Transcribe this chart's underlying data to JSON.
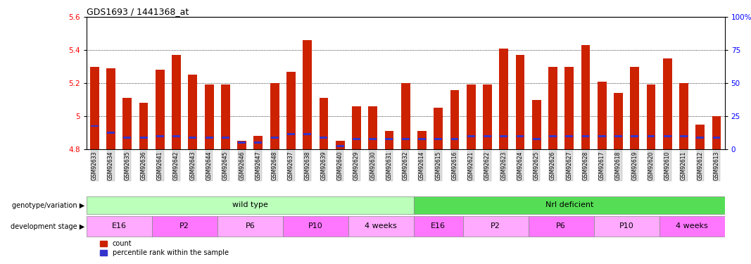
{
  "title": "GDS1693 / 1441368_at",
  "samples": [
    "GSM92633",
    "GSM92634",
    "GSM92635",
    "GSM92636",
    "GSM92641",
    "GSM92642",
    "GSM92643",
    "GSM92644",
    "GSM92645",
    "GSM92646",
    "GSM92647",
    "GSM92648",
    "GSM92637",
    "GSM92638",
    "GSM92639",
    "GSM92640",
    "GSM92629",
    "GSM92630",
    "GSM92631",
    "GSM92632",
    "GSM92614",
    "GSM92615",
    "GSM92616",
    "GSM92621",
    "GSM92622",
    "GSM92623",
    "GSM92624",
    "GSM92625",
    "GSM92626",
    "GSM92627",
    "GSM92628",
    "GSM92617",
    "GSM92618",
    "GSM92619",
    "GSM92620",
    "GSM92610",
    "GSM92611",
    "GSM92612",
    "GSM92613"
  ],
  "count_values": [
    5.3,
    5.29,
    5.11,
    5.08,
    5.28,
    5.37,
    5.25,
    5.19,
    5.19,
    4.85,
    4.88,
    5.2,
    5.27,
    5.46,
    5.11,
    4.85,
    5.06,
    5.06,
    4.91,
    5.2,
    4.91,
    5.05,
    5.16,
    5.19,
    5.19,
    5.41,
    5.37,
    5.1,
    5.3,
    5.3,
    5.43,
    5.21,
    5.14,
    5.3,
    5.19,
    5.35,
    5.2,
    4.95,
    5.0
  ],
  "percentile_values": [
    4.94,
    4.9,
    4.87,
    4.87,
    4.88,
    4.88,
    4.87,
    4.87,
    4.87,
    4.84,
    4.84,
    4.87,
    4.89,
    4.89,
    4.87,
    4.82,
    4.86,
    4.86,
    4.86,
    4.86,
    4.86,
    4.86,
    4.86,
    4.88,
    4.88,
    4.88,
    4.88,
    4.86,
    4.88,
    4.88,
    4.88,
    4.88,
    4.88,
    4.88,
    4.88,
    4.88,
    4.88,
    4.87,
    4.87
  ],
  "ymin": 4.8,
  "ymax": 5.6,
  "yticks": [
    4.8,
    5.0,
    5.2,
    5.4,
    5.6
  ],
  "right_yticks": [
    0,
    25,
    50,
    75,
    100
  ],
  "bar_color": "#cc2200",
  "percentile_color": "#3333cc",
  "genotype_groups": [
    {
      "label": "wild type",
      "start": 0,
      "end": 19,
      "color": "#bbffbb"
    },
    {
      "label": "Nrl deficient",
      "start": 20,
      "end": 38,
      "color": "#55dd55"
    }
  ],
  "stage_groups": [
    {
      "label": "E16",
      "start": 0,
      "end": 3,
      "color": "#ffaaff"
    },
    {
      "label": "P2",
      "start": 4,
      "end": 7,
      "color": "#ff77ff"
    },
    {
      "label": "P6",
      "start": 8,
      "end": 11,
      "color": "#ffaaff"
    },
    {
      "label": "P10",
      "start": 12,
      "end": 15,
      "color": "#ff77ff"
    },
    {
      "label": "4 weeks",
      "start": 16,
      "end": 19,
      "color": "#ffaaff"
    },
    {
      "label": "E16",
      "start": 20,
      "end": 22,
      "color": "#ff77ff"
    },
    {
      "label": "P2",
      "start": 23,
      "end": 26,
      "color": "#ffaaff"
    },
    {
      "label": "P6",
      "start": 27,
      "end": 30,
      "color": "#ff77ff"
    },
    {
      "label": "P10",
      "start": 31,
      "end": 34,
      "color": "#ffaaff"
    },
    {
      "label": "4 weeks",
      "start": 35,
      "end": 38,
      "color": "#ff77ff"
    }
  ]
}
